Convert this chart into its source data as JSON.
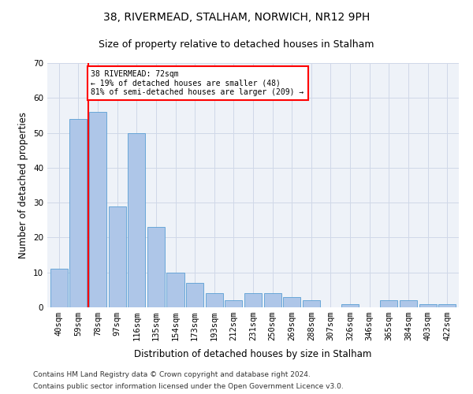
{
  "title": "38, RIVERMEAD, STALHAM, NORWICH, NR12 9PH",
  "subtitle": "Size of property relative to detached houses in Stalham",
  "xlabel": "Distribution of detached houses by size in Stalham",
  "ylabel": "Number of detached properties",
  "footnote1": "Contains HM Land Registry data © Crown copyright and database right 2024.",
  "footnote2": "Contains public sector information licensed under the Open Government Licence v3.0.",
  "categories": [
    "40sqm",
    "59sqm",
    "78sqm",
    "97sqm",
    "116sqm",
    "135sqm",
    "154sqm",
    "173sqm",
    "193sqm",
    "212sqm",
    "231sqm",
    "250sqm",
    "269sqm",
    "288sqm",
    "307sqm",
    "326sqm",
    "346sqm",
    "365sqm",
    "384sqm",
    "403sqm",
    "422sqm"
  ],
  "values": [
    11,
    54,
    56,
    29,
    50,
    23,
    10,
    7,
    4,
    2,
    4,
    4,
    3,
    2,
    0,
    1,
    0,
    2,
    2,
    1,
    1
  ],
  "bar_color": "#aec6e8",
  "bar_edge_color": "#5a9fd4",
  "red_line_x": 1.5,
  "annotation_text": "38 RIVERMEAD: 72sqm\n← 19% of detached houses are smaller (48)\n81% of semi-detached houses are larger (209) →",
  "annotation_box_color": "white",
  "annotation_box_edge_color": "red",
  "red_line_color": "red",
  "ylim": [
    0,
    70
  ],
  "yticks": [
    0,
    10,
    20,
    30,
    40,
    50,
    60,
    70
  ],
  "grid_color": "#d0d8e8",
  "background_color": "#eef2f8",
  "title_fontsize": 10,
  "subtitle_fontsize": 9,
  "xlabel_fontsize": 8.5,
  "ylabel_fontsize": 8.5,
  "tick_fontsize": 7.5,
  "annotation_fontsize": 7,
  "footnote_fontsize": 6.5
}
